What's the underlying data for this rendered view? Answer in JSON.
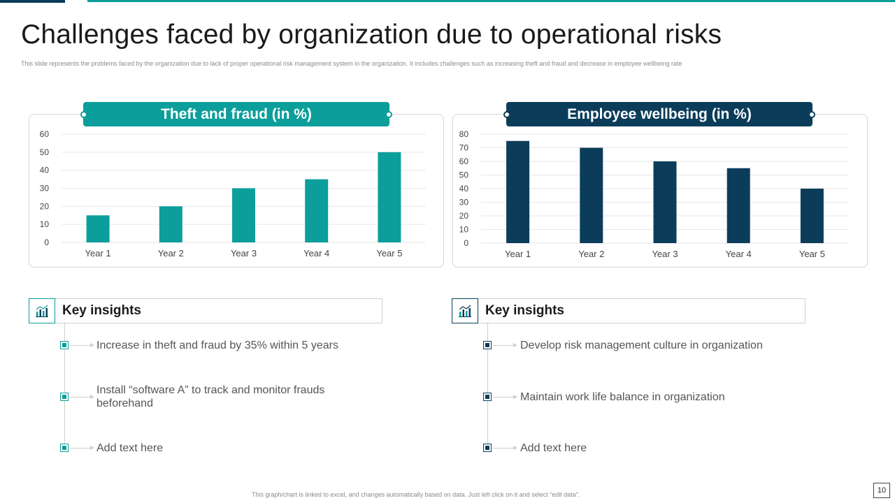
{
  "slide": {
    "title": "Challenges faced by organization due to operational risks",
    "subtitle": "This slide represents the problems faced by the organization due to lack of proper operational risk management system in the organization. It includes challenges such as increasing theft and fraud and decrease in employee  wellbeing rate",
    "footer_note": "This graph/chart is linked to excel, and changes automatically based on data. Just left click on it and select “edit data”.",
    "page_number": "10"
  },
  "colors": {
    "teal": "#0c9e9a",
    "navy": "#0b3d5a"
  },
  "chart_data": [
    {
      "type": "bar",
      "title": "Theft and fraud (in %)",
      "categories": [
        "Year 1",
        "Year 2",
        "Year 3",
        "Year 4",
        "Year 5"
      ],
      "values": [
        15,
        20,
        30,
        35,
        50
      ],
      "ylim": [
        0,
        60
      ],
      "yticks": [
        0,
        10,
        20,
        30,
        40,
        50,
        60
      ],
      "grid": true,
      "color": "#0c9e9a"
    },
    {
      "type": "bar",
      "title": "Employee  wellbeing (in %)",
      "categories": [
        "Year 1",
        "Year 2",
        "Year 3",
        "Year 4",
        "Year 5"
      ],
      "values": [
        75,
        70,
        60,
        55,
        40
      ],
      "ylim": [
        0,
        80
      ],
      "yticks": [
        0,
        10,
        20,
        30,
        40,
        50,
        60,
        70,
        80
      ],
      "grid": true,
      "color": "#0b3d5a"
    }
  ],
  "insights_left": {
    "title": "Key insights",
    "icon": "chart-icon",
    "items": [
      "Increase  in theft  and fraud by 35% within 5 years",
      "Install  “software A” to track and monitor frauds beforehand",
      "Add text here"
    ]
  },
  "insights_right": {
    "title": "Key insights",
    "icon": "chart-icon",
    "items": [
      "Develop risk management culture  in organization",
      "Maintain work life balance in organization",
      "Add text here"
    ]
  }
}
